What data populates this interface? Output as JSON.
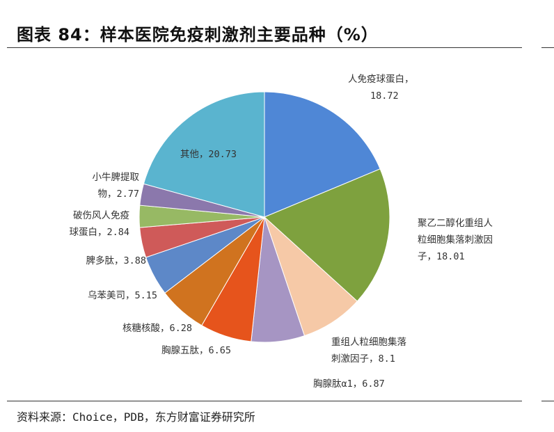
{
  "title": "图表 84：样本医院免疫刺激剂主要品种（%）",
  "source": "资料来源：Choice，PDB，东方财富证券研究所",
  "chart_data": {
    "type": "pie",
    "title": "图表 84：样本医院免疫刺激剂主要品种（%）",
    "slices": [
      {
        "label": "人免疫球蛋白",
        "value": 18.72,
        "color": "#4f87d6",
        "lines": [
          "人免疫球蛋白，",
          "18.72"
        ]
      },
      {
        "label": "聚乙二醇化重组人粒细胞集落刺激因子",
        "value": 18.01,
        "color": "#7ea13e",
        "lines": [
          "聚乙二醇化重组人",
          "粒细胞集落刺激因",
          "子，18.01"
        ]
      },
      {
        "label": "重组人粒细胞集落刺激因子",
        "value": 8.1,
        "color": "#f6c9a7",
        "lines": [
          "重组人粒细胞集落",
          "刺激因子，8.1"
        ]
      },
      {
        "label": "胸腺肽α1",
        "value": 6.87,
        "color": "#a695c3",
        "lines": [
          "胸腺肽α1，6.87"
        ]
      },
      {
        "label": "胸腺五肽",
        "value": 6.65,
        "color": "#e6541c",
        "lines": [
          "胸腺五肽，6.65"
        ]
      },
      {
        "label": "核糖核酸",
        "value": 6.28,
        "color": "#d0731f",
        "lines": [
          "核糖核酸，6.28"
        ]
      },
      {
        "label": "乌苯美司",
        "value": 5.15,
        "color": "#5d88c8",
        "lines": [
          "乌苯美司，5.15"
        ]
      },
      {
        "label": "脾多肽",
        "value": 3.88,
        "color": "#cf5a59",
        "lines": [
          "脾多肽，3.88"
        ]
      },
      {
        "label": "破伤风人免疫球蛋白",
        "value": 2.84,
        "color": "#97b964",
        "lines": [
          "破伤风人免疫",
          "球蛋白，2.84"
        ]
      },
      {
        "label": "小牛脾提取物",
        "value": 2.77,
        "color": "#8b78ac",
        "lines": [
          "小牛脾提取",
          "物，2.77"
        ]
      },
      {
        "label": "其他",
        "value": 20.73,
        "color": "#5ab4cf",
        "lines": [
          "其他，20.73"
        ]
      }
    ]
  }
}
